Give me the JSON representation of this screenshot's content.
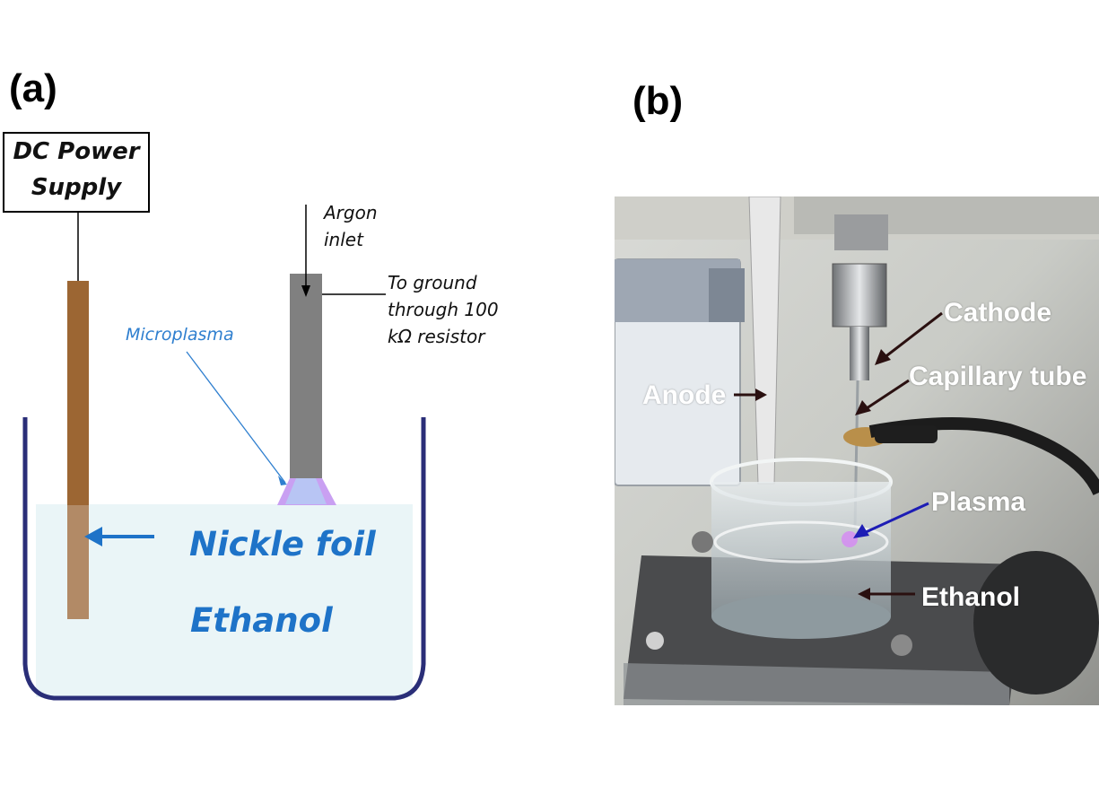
{
  "panel_a": {
    "label": "(a)",
    "psu_line1": "DC Power",
    "psu_line2": "Supply",
    "argon_line1": "Argon",
    "argon_line2": "inlet",
    "ground_line1": "To ground",
    "ground_line2": "through 100",
    "ground_line3": "kΩ resistor",
    "microplasma": "Microplasma",
    "nickel": "Nickle foil",
    "ethanol": "Ethanol"
  },
  "panel_b": {
    "label": "(b)",
    "cathode": "Cathode",
    "capillary": "Capillary tube",
    "anode": "Anode",
    "plasma": "Plasma",
    "ethanol": "Ethanol"
  },
  "colors": {
    "beaker_wall": "#2a2e78",
    "liquid": "#eaf5f7",
    "foil": "#9c6633",
    "capillary": "#808080",
    "plasma_glow": "#c58cf0",
    "annotation_blue": "#1e73c8"
  }
}
